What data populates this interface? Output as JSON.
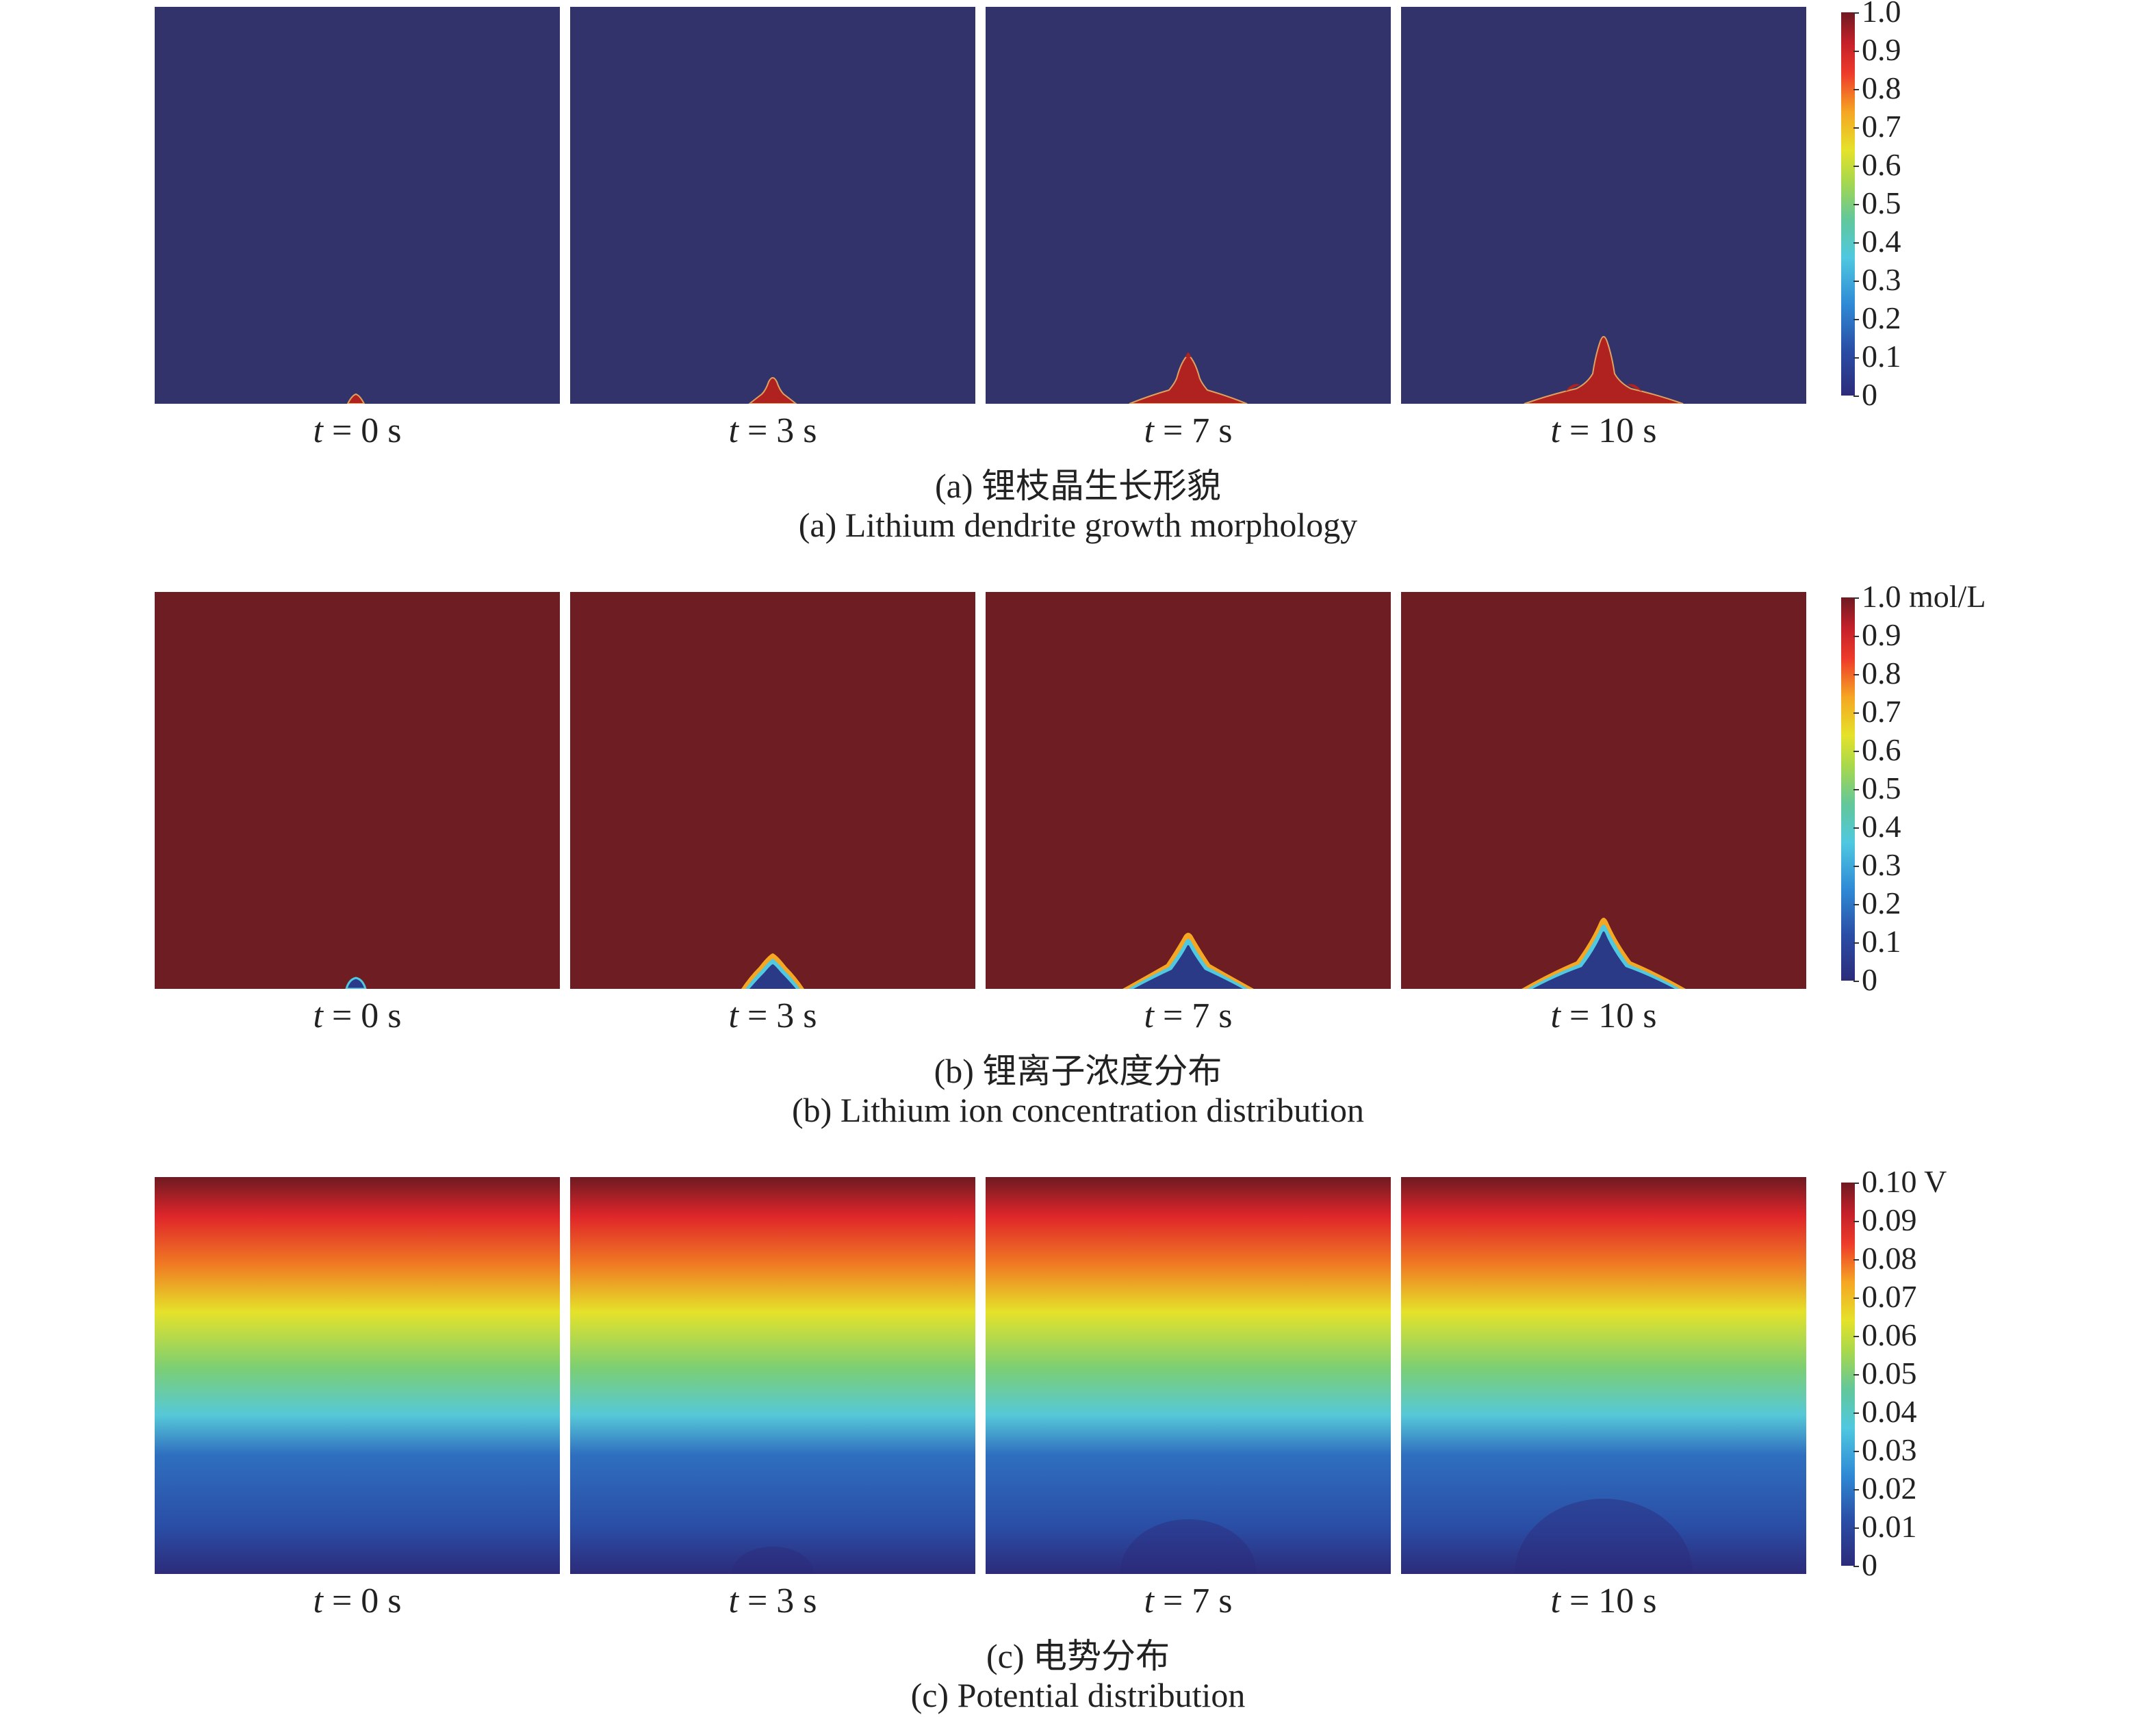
{
  "chart_data": [
    {
      "type": "heatmap",
      "panels": [
        "t = 0 s",
        "t = 3 s",
        "t = 7 s",
        "t = 10 s"
      ],
      "times_s": [
        0,
        3,
        7,
        10
      ],
      "caption_cn": "(a) 锂枝晶生长形貌",
      "caption_en": "(a) Lithium dendrite growth morphology",
      "colorbar": {
        "min": 0,
        "max": 1.0,
        "ticks": [
          "1.0",
          "0.9",
          "0.8",
          "0.7",
          "0.6",
          "0.5",
          "0.4",
          "0.3",
          "0.2",
          "0.1",
          "0"
        ]
      },
      "field_background_value": 0,
      "dendrite_value": 1.0
    },
    {
      "type": "heatmap",
      "panels": [
        "t = 0 s",
        "t = 3 s",
        "t = 7 s",
        "t = 10 s"
      ],
      "times_s": [
        0,
        3,
        7,
        10
      ],
      "caption_cn": "(b) 锂离子浓度分布",
      "caption_en": "(b) Lithium ion concentration distribution",
      "colorbar": {
        "min": 0,
        "max": 1.0,
        "ticks": [
          "1.0 mol/L",
          "0.9",
          "0.8",
          "0.7",
          "0.6",
          "0.5",
          "0.4",
          "0.3",
          "0.2",
          "0.1",
          "0"
        ]
      },
      "field_background_value": 1.0,
      "dendrite_value": 0
    },
    {
      "type": "heatmap",
      "panels": [
        "t = 0 s",
        "t = 3 s",
        "t = 7 s",
        "t = 10 s"
      ],
      "times_s": [
        0,
        3,
        7,
        10
      ],
      "caption_cn": "(c) 电势分布",
      "caption_en": "(c) Potential distribution",
      "colorbar": {
        "min": 0,
        "max": 0.1,
        "ticks": [
          "0.10 V",
          "0.09",
          "0.08",
          "0.07",
          "0.06",
          "0.05",
          "0.04",
          "0.03",
          "0.02",
          "0.01",
          "0"
        ]
      },
      "gradient": "top 0.10 to bottom 0"
    }
  ],
  "colors": {
    "low": "#2d2b7a",
    "high": "#6e1a22",
    "dendrite_red": "#b0221f"
  }
}
